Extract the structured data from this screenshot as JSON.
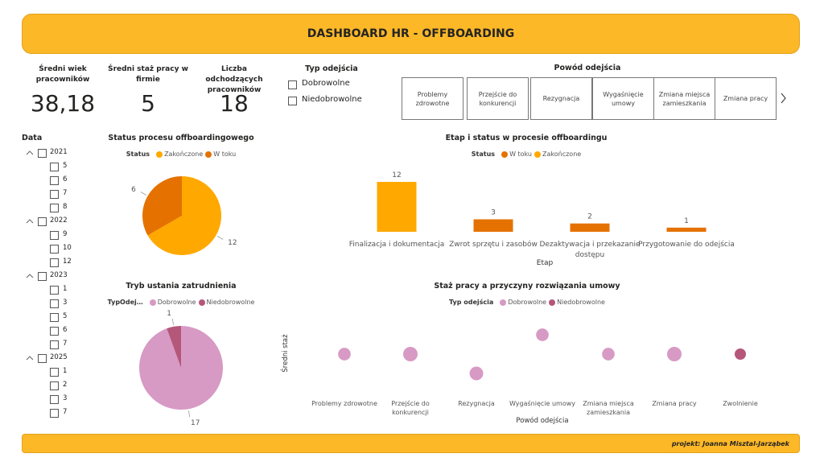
{
  "header": {
    "title": "DASHBOARD HR - OFFBOARDING"
  },
  "kpis": [
    {
      "label": "Średni wiek pracowników",
      "value": "38,18"
    },
    {
      "label": "Średni staż pracy w firmie",
      "value": "5"
    },
    {
      "label": "Liczba odchodzących pracowników",
      "value": "18"
    }
  ],
  "type_filter": {
    "title": "Typ odejścia",
    "options": [
      "Dobrowolne",
      "Niedobrowolne"
    ]
  },
  "reason_slicer": {
    "title": "Powód odejścia",
    "options": [
      "Problemy zdrowotne",
      "Przejście do konkurencji",
      "Rezygnacja",
      "Wygaśnięcie umowy",
      "Zmiana miejsca zamieszkania",
      "Zmiana pracy"
    ]
  },
  "date_slicer": {
    "title": "Data",
    "years": [
      {
        "year": "2021",
        "months": [
          "5",
          "6",
          "7",
          "8"
        ]
      },
      {
        "year": "2022",
        "months": [
          "9",
          "10",
          "12"
        ]
      },
      {
        "year": "2023",
        "months": [
          "1",
          "3",
          "5",
          "6",
          "7"
        ]
      },
      {
        "year": "2025",
        "months": [
          "1",
          "2",
          "3",
          "7"
        ]
      }
    ]
  },
  "chart_data": [
    {
      "type": "pie",
      "title": "Status procesu offboardingowego",
      "legend_title": "Status",
      "categories": [
        "Zakończone",
        "W toku"
      ],
      "values": [
        12,
        6
      ],
      "colors": [
        "#FFA800",
        "#E57200"
      ]
    },
    {
      "type": "bar",
      "title": "Etap i status w procesie offboardingu",
      "legend_title": "Status",
      "categories": [
        "Finalizacja i dokumentacja",
        "Zwrot sprzętu i zasobów",
        "Dezaktywacja i przekazanie dostępu",
        "Przygotowanie do odejścia"
      ],
      "series": [
        {
          "name": "W toku",
          "color": "#E57200",
          "values": [
            null,
            3,
            2,
            1
          ]
        },
        {
          "name": "Zakończone",
          "color": "#FFA800",
          "values": [
            12,
            null,
            null,
            null
          ]
        }
      ],
      "ylim": [
        0,
        12
      ],
      "x_label": "Etap"
    },
    {
      "type": "pie",
      "title": "Tryb ustania zatrudnienia",
      "legend_title": "TypOdej…",
      "categories": [
        "Dobrowolne",
        "Niedobrowolne"
      ],
      "values": [
        17,
        1
      ],
      "colors": [
        "#D79AC4",
        "#B5577A"
      ]
    },
    {
      "type": "scatter",
      "title": "Staż pracy a przyczyny rozwiązania umowy",
      "legend_title": "Typ odejścia",
      "categories": [
        "Problemy zdrowotne",
        "Przejście do konkurencji",
        "Rezygnacja",
        "Wygaśnięcie umowy",
        "Zmiana miejsca zamieszkania",
        "Zmiana pracy",
        "Zwolnienie"
      ],
      "series": [
        {
          "name": "Dobrowolne",
          "color": "#D79AC4",
          "values": [
            5,
            5,
            3,
            7,
            5,
            5,
            null
          ],
          "sizes": [
            2,
            4,
            3,
            2,
            2,
            4,
            null
          ]
        },
        {
          "name": "Niedobrowolne",
          "color": "#B5577A",
          "values": [
            null,
            null,
            null,
            null,
            null,
            null,
            5
          ],
          "sizes": [
            null,
            null,
            null,
            null,
            null,
            null,
            1
          ]
        }
      ],
      "ylim": [
        1,
        9
      ],
      "x_label": "Powód odejścia",
      "y_label": "Średni staż"
    }
  ],
  "footer": {
    "text": "projekt: Joanna Misztal-Jarząbek"
  }
}
